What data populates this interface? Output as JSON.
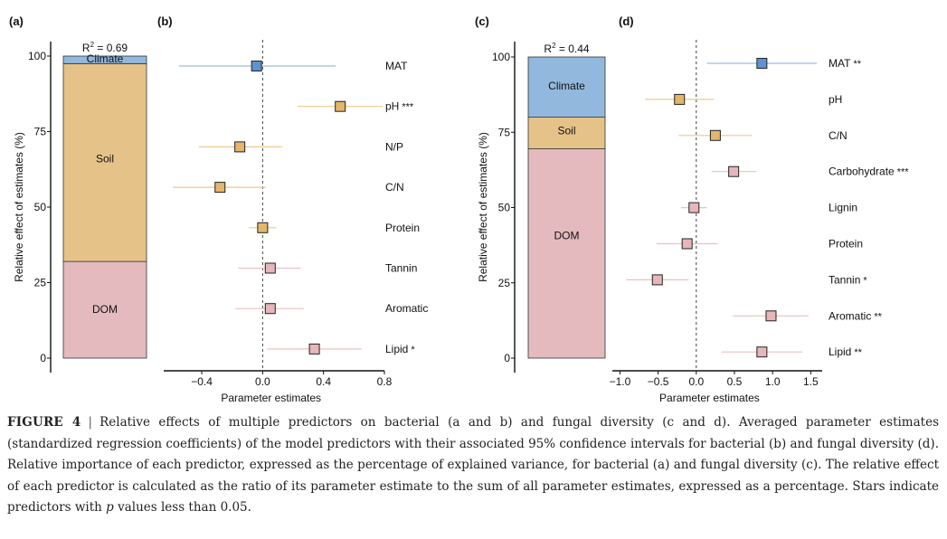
{
  "panels": [
    {
      "id": "a",
      "label": "(a)",
      "type": "stacked-bar",
      "r2_prefix": "R",
      "r2_sup": "2",
      "r2_value": " = 0.69",
      "ylabel": "Relative effect of estimates (%)",
      "yticks": [
        0,
        25,
        50,
        75,
        100
      ],
      "segments": [
        {
          "name": "DOM",
          "from": 0,
          "to": 32,
          "color": "#e4babe"
        },
        {
          "name": "Soil",
          "from": 32,
          "to": 97.5,
          "color": "#e5c388"
        },
        {
          "name": "Climate",
          "from": 97.5,
          "to": 100,
          "color": "#92b8dd"
        }
      ]
    },
    {
      "id": "b",
      "label": "(b)",
      "type": "forest",
      "xlabel": "Parameter estimates",
      "xlim": [
        -0.65,
        0.8
      ],
      "xticks": [
        -0.4,
        0.0,
        0.4,
        0.8
      ],
      "xtick_labels": [
        "−0.4",
        "0.0",
        "0.4",
        "0.8"
      ],
      "rows": [
        {
          "name": "MAT",
          "stars": "",
          "est": -0.04,
          "lo": -0.55,
          "hi": 0.48,
          "group": "Climate"
        },
        {
          "name": "pH",
          "stars": "***",
          "est": 0.51,
          "lo": 0.23,
          "hi": 0.79,
          "group": "Soil"
        },
        {
          "name": "N/P",
          "stars": "",
          "est": -0.15,
          "lo": -0.42,
          "hi": 0.13,
          "group": "Soil"
        },
        {
          "name": "C/N",
          "stars": "",
          "est": -0.28,
          "lo": -0.59,
          "hi": 0.02,
          "group": "Soil"
        },
        {
          "name": "Protein",
          "stars": "",
          "est": 0.0,
          "lo": -0.09,
          "hi": 0.09,
          "group": "Soil"
        },
        {
          "name": "Tannin",
          "stars": "",
          "est": 0.05,
          "lo": -0.16,
          "hi": 0.25,
          "group": "DOM"
        },
        {
          "name": "Aromatic",
          "stars": "",
          "est": 0.05,
          "lo": -0.18,
          "hi": 0.27,
          "group": "DOM"
        },
        {
          "name": "Lipid",
          "stars": "*",
          "est": 0.34,
          "lo": 0.03,
          "hi": 0.65,
          "group": "DOM"
        }
      ]
    },
    {
      "id": "c",
      "label": "(c)",
      "type": "stacked-bar",
      "r2_prefix": "R",
      "r2_sup": "2",
      "r2_value": " = 0.44",
      "ylabel": "Relative effect of estimates (%)",
      "yticks": [
        0,
        25,
        50,
        75,
        100
      ],
      "segments": [
        {
          "name": "DOM",
          "from": 0,
          "to": 69.5,
          "color": "#e4babe"
        },
        {
          "name": "Soil",
          "from": 69.5,
          "to": 80,
          "color": "#e5c388"
        },
        {
          "name": "Climate",
          "from": 80,
          "to": 100,
          "color": "#92b8dd"
        }
      ]
    },
    {
      "id": "d",
      "label": "(d)",
      "type": "forest",
      "xlabel": "Parameter estimates",
      "xlim": [
        -1.1,
        1.65
      ],
      "xticks": [
        -1.0,
        -0.5,
        0.0,
        0.5,
        1.0,
        1.5
      ],
      "xtick_labels": [
        "−1.0",
        "−0.5",
        "0.0",
        "0.5",
        "1.0",
        "1.5"
      ],
      "rows": [
        {
          "name": "MAT",
          "stars": "**",
          "est": 0.86,
          "lo": 0.14,
          "hi": 1.58,
          "group": "Climate"
        },
        {
          "name": "pH",
          "stars": "",
          "est": -0.22,
          "lo": -0.67,
          "hi": 0.23,
          "group": "Soil"
        },
        {
          "name": "C/N",
          "stars": "",
          "est": 0.25,
          "lo": -0.23,
          "hi": 0.73,
          "group": "Soil"
        },
        {
          "name": "Carbohydrate",
          "stars": "***",
          "est": 0.49,
          "lo": 0.2,
          "hi": 0.79,
          "group": "DOM"
        },
        {
          "name": "Lignin",
          "stars": "",
          "est": -0.03,
          "lo": -0.2,
          "hi": 0.14,
          "group": "DOM"
        },
        {
          "name": "Protein",
          "stars": "",
          "est": -0.12,
          "lo": -0.52,
          "hi": 0.28,
          "group": "DOM"
        },
        {
          "name": "Tannin",
          "stars": "*",
          "est": -0.51,
          "lo": -0.92,
          "hi": -0.1,
          "group": "DOM"
        },
        {
          "name": "Aromatic",
          "stars": "**",
          "est": 0.98,
          "lo": 0.48,
          "hi": 1.47,
          "group": "DOM"
        },
        {
          "name": "Lipid",
          "stars": "**",
          "est": 0.86,
          "lo": 0.33,
          "hi": 1.39,
          "group": "DOM"
        }
      ]
    }
  ],
  "group_colors": {
    "Climate": {
      "fill": "#5f93cf",
      "line": "#9cbde0"
    },
    "Soil": {
      "fill": "#e2b66c",
      "line": "#ecc98f"
    },
    "DOM": {
      "fill": "#e6b6ba",
      "line": "#ecbfc2"
    }
  },
  "chart_data": [
    {
      "type": "bar",
      "title": "(a)",
      "stacked": true,
      "ylabel": "Relative effect of estimates (%)",
      "ylim": [
        0,
        100
      ],
      "r2": "R² = 0.69",
      "categories": [
        "Climate",
        "Soil",
        "DOM"
      ],
      "values": [
        2.5,
        65.5,
        32
      ]
    },
    {
      "type": "scatter",
      "title": "(b)",
      "xlabel": "Parameter estimates",
      "xlim": [
        -0.65,
        0.8
      ],
      "categories": [
        "MAT",
        "pH***",
        "N/P",
        "C/N",
        "Protein",
        "Tannin",
        "Aromatic",
        "Lipid*"
      ],
      "values": [
        -0.04,
        0.51,
        -0.15,
        -0.28,
        0.0,
        0.05,
        0.05,
        0.34
      ]
    },
    {
      "type": "bar",
      "title": "(c)",
      "stacked": true,
      "ylabel": "Relative effect of estimates (%)",
      "ylim": [
        0,
        100
      ],
      "r2": "R² = 0.44",
      "categories": [
        "Climate",
        "Soil",
        "DOM"
      ],
      "values": [
        20,
        10.5,
        69.5
      ]
    },
    {
      "type": "scatter",
      "title": "(d)",
      "xlabel": "Parameter estimates",
      "xlim": [
        -1.1,
        1.65
      ],
      "categories": [
        "MAT**",
        "pH",
        "C/N",
        "Carbohydrate***",
        "Lignin",
        "Protein",
        "Tannin*",
        "Aromatic**",
        "Lipid**"
      ],
      "values": [
        0.86,
        -0.22,
        0.25,
        0.49,
        -0.03,
        -0.12,
        -0.51,
        0.98,
        0.86
      ]
    }
  ],
  "caption": {
    "label": "FIGURE 4",
    "separator": "|",
    "text_1": "Relative effects of multiple predictors on bacterial (a and b) and fungal diversity (c and d). Averaged parameter estimates (standardized regression coefficients) of the model predictors with their associated 95% confidence intervals for bacterial (b) and fungal diversity (d). Relative importance of each predictor, expressed as the percentage of explained variance, for bacterial (a) and fungal diversity (c). The relative effect of each predictor is calculated as the ratio of its parameter estimate to the sum of all parameter estimates, expressed as a percentage. Stars indicate predictors with ",
    "p_symbol": "p",
    "text_2": " values less than 0.05."
  }
}
